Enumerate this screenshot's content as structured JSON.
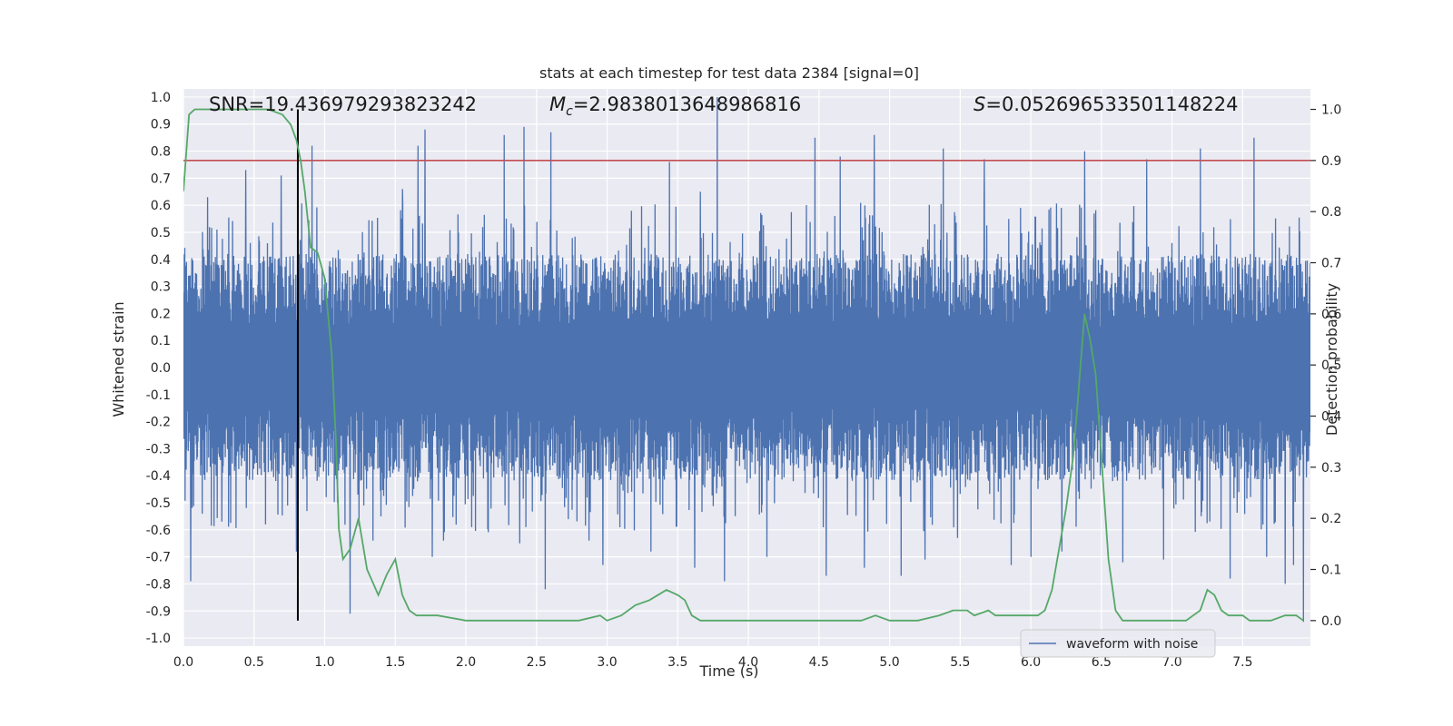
{
  "chart_data": {
    "type": "line",
    "title": "stats at each timestep for test data 2384 [signal=0]",
    "xlabel": "Time (s)",
    "ylabel_left": "Whitened strain",
    "ylabel_right": "Detection probability",
    "xlim": [
      0.0,
      7.98
    ],
    "ylim_left": [
      -1.03,
      1.03
    ],
    "ylim_right": [
      -0.05,
      1.04
    ],
    "x_ticks": [
      "0.0",
      "0.5",
      "1.0",
      "1.5",
      "2.0",
      "2.5",
      "3.0",
      "3.5",
      "4.0",
      "4.5",
      "5.0",
      "5.5",
      "6.0",
      "6.5",
      "7.0",
      "7.5"
    ],
    "y_ticks_left": [
      "1.0",
      "0.9",
      "0.8",
      "0.7",
      "0.6",
      "0.5",
      "0.4",
      "0.3",
      "0.2",
      "0.1",
      "0.0",
      "-0.1",
      "-0.2",
      "-0.3",
      "-0.4",
      "-0.5",
      "-0.6",
      "-0.7",
      "-0.8",
      "-0.9",
      "-1.0"
    ],
    "y_ticks_right": [
      "1.0",
      "0.9",
      "0.8",
      "0.7",
      "0.6",
      "0.5",
      "0.4",
      "0.3",
      "0.2",
      "0.1",
      "0.0"
    ],
    "grid": true,
    "legend_position": "lower-right",
    "annotations": {
      "snr": "SNR=19.436979293823242",
      "mc_symbol": "M",
      "mc_sub": "c",
      "mc_value": "=2.9838013648986816",
      "s_symbol": "S",
      "s_value": "=0.052696533501148224"
    },
    "series": [
      {
        "name": "waveform with noise",
        "color": "#4c72b0",
        "axis": "left",
        "kind": "noise",
        "x_range": [
          0.0,
          7.98
        ],
        "typical_envelope": [
          -0.42,
          0.42
        ],
        "spikes": [
          {
            "x": 0.05,
            "y": -0.79
          },
          {
            "x": 0.17,
            "y": 0.63
          },
          {
            "x": 0.27,
            "y": -0.57
          },
          {
            "x": 0.44,
            "y": 0.73
          },
          {
            "x": 0.58,
            "y": -0.58
          },
          {
            "x": 0.69,
            "y": 0.71
          },
          {
            "x": 0.8,
            "y": -0.68
          },
          {
            "x": 0.91,
            "y": 0.82
          },
          {
            "x": 1.18,
            "y": -0.91
          },
          {
            "x": 1.34,
            "y": -0.64
          },
          {
            "x": 1.55,
            "y": 0.66
          },
          {
            "x": 1.66,
            "y": 0.82
          },
          {
            "x": 1.71,
            "y": 0.88
          },
          {
            "x": 1.76,
            "y": -0.7
          },
          {
            "x": 1.84,
            "y": -0.64
          },
          {
            "x": 2.04,
            "y": -0.59
          },
          {
            "x": 2.27,
            "y": 0.86
          },
          {
            "x": 2.38,
            "y": -0.65
          },
          {
            "x": 2.41,
            "y": 0.89
          },
          {
            "x": 2.56,
            "y": -0.82
          },
          {
            "x": 2.6,
            "y": 0.87
          },
          {
            "x": 2.87,
            "y": -0.64
          },
          {
            "x": 2.97,
            "y": -0.73
          },
          {
            "x": 3.31,
            "y": -0.68
          },
          {
            "x": 3.44,
            "y": 0.76
          },
          {
            "x": 3.62,
            "y": -0.74
          },
          {
            "x": 3.66,
            "y": 0.65
          },
          {
            "x": 3.78,
            "y": 1.0
          },
          {
            "x": 3.83,
            "y": -0.79
          },
          {
            "x": 4.13,
            "y": -0.7
          },
          {
            "x": 4.47,
            "y": 0.85
          },
          {
            "x": 4.55,
            "y": -0.77
          },
          {
            "x": 4.65,
            "y": 0.78
          },
          {
            "x": 4.82,
            "y": -0.74
          },
          {
            "x": 4.89,
            "y": 0.86
          },
          {
            "x": 5.08,
            "y": -0.77
          },
          {
            "x": 5.25,
            "y": -0.71
          },
          {
            "x": 5.38,
            "y": 0.81
          },
          {
            "x": 5.48,
            "y": -0.63
          },
          {
            "x": 5.67,
            "y": 0.77
          },
          {
            "x": 5.86,
            "y": -0.73
          },
          {
            "x": 6.0,
            "y": -0.7
          },
          {
            "x": 6.22,
            "y": -0.68
          },
          {
            "x": 6.38,
            "y": 0.8
          },
          {
            "x": 6.65,
            "y": -0.72
          },
          {
            "x": 6.82,
            "y": 0.77
          },
          {
            "x": 6.94,
            "y": -0.71
          },
          {
            "x": 7.2,
            "y": 0.81
          },
          {
            "x": 7.41,
            "y": -0.78
          },
          {
            "x": 7.58,
            "y": 0.85
          },
          {
            "x": 7.67,
            "y": -0.7
          },
          {
            "x": 7.8,
            "y": -0.8
          },
          {
            "x": 7.86,
            "y": -0.73
          },
          {
            "x": 7.93,
            "y": -0.94
          }
        ]
      },
      {
        "name": "",
        "color": "#55a868",
        "axis": "right",
        "kind": "line",
        "x": [
          0.0,
          0.04,
          0.08,
          0.12,
          0.2,
          0.4,
          0.6,
          0.7,
          0.76,
          0.8,
          0.83,
          0.86,
          0.9,
          0.95,
          1.0,
          1.05,
          1.08,
          1.1,
          1.13,
          1.18,
          1.24,
          1.3,
          1.38,
          1.44,
          1.5,
          1.55,
          1.6,
          1.65,
          1.8,
          2.0,
          2.2,
          2.5,
          2.8,
          2.95,
          3.0,
          3.1,
          3.2,
          3.3,
          3.36,
          3.42,
          3.5,
          3.55,
          3.6,
          3.66,
          3.75,
          4.0,
          4.5,
          4.8,
          4.9,
          5.0,
          5.2,
          5.35,
          5.45,
          5.5,
          5.55,
          5.6,
          5.7,
          5.75,
          5.9,
          6.05,
          6.1,
          6.15,
          6.2,
          6.25,
          6.3,
          6.33,
          6.38,
          6.42,
          6.46,
          6.5,
          6.55,
          6.6,
          6.65,
          6.8,
          7.0,
          7.1,
          7.15,
          7.2,
          7.25,
          7.3,
          7.35,
          7.4,
          7.5,
          7.55,
          7.62,
          7.7,
          7.8,
          7.88,
          7.93
        ],
        "y": [
          0.84,
          0.99,
          1.0,
          1.0,
          1.0,
          1.0,
          1.0,
          0.99,
          0.97,
          0.94,
          0.9,
          0.84,
          0.73,
          0.72,
          0.67,
          0.52,
          0.35,
          0.18,
          0.12,
          0.14,
          0.2,
          0.1,
          0.05,
          0.09,
          0.12,
          0.05,
          0.02,
          0.01,
          0.01,
          0.0,
          0.0,
          0.0,
          0.0,
          0.01,
          0.0,
          0.01,
          0.03,
          0.04,
          0.05,
          0.06,
          0.05,
          0.04,
          0.01,
          0.0,
          0.0,
          0.0,
          0.0,
          0.0,
          0.01,
          0.0,
          0.0,
          0.01,
          0.02,
          0.02,
          0.02,
          0.01,
          0.02,
          0.01,
          0.01,
          0.01,
          0.02,
          0.06,
          0.14,
          0.22,
          0.32,
          0.42,
          0.6,
          0.55,
          0.48,
          0.32,
          0.12,
          0.02,
          0.0,
          0.0,
          0.0,
          0.0,
          0.01,
          0.02,
          0.06,
          0.05,
          0.02,
          0.01,
          0.01,
          0.0,
          0.0,
          0.0,
          0.01,
          0.01,
          0.0
        ]
      },
      {
        "name": "",
        "color": "#c44e52",
        "axis": "right",
        "kind": "hline",
        "y": 0.9
      },
      {
        "name": "",
        "color": "#000000",
        "axis": "right",
        "kind": "vline",
        "x": 0.81,
        "y_range": [
          0.0,
          1.0
        ]
      }
    ]
  }
}
